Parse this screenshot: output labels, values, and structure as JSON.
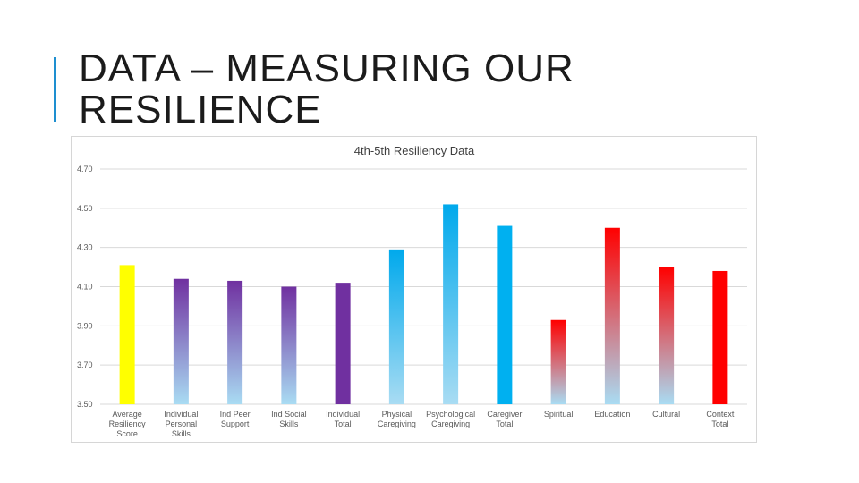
{
  "slide": {
    "title": "DATA – MEASURING OUR RESILIENCE",
    "accent_color": "#1e8fd0"
  },
  "chart_data": {
    "type": "bar",
    "title": "4th-5th Resiliency Data",
    "xlabel": "",
    "ylabel": "",
    "ylim": [
      3.5,
      4.7
    ],
    "yticks": [
      "4.70",
      "4.50",
      "4.30",
      "4.10",
      "3.90",
      "3.70",
      "3.50"
    ],
    "grid": true,
    "legend": "none",
    "categories": [
      "Average Resiliency Score",
      "Individual Personal Skills",
      "Ind Peer Support",
      "Ind Social Skills",
      "Individual Total",
      "Physical Caregiving",
      "Psychological Caregiving",
      "Caregiver Total",
      "Spiritual",
      "Education",
      "Cultural",
      "Context Total"
    ],
    "values": [
      4.21,
      4.14,
      4.13,
      4.1,
      4.12,
      4.29,
      4.52,
      4.41,
      3.93,
      4.4,
      4.2,
      4.18
    ],
    "bar_colors": [
      [
        "#ffff00",
        "#ffff00"
      ],
      [
        "#7030a0",
        "#a9dcf3"
      ],
      [
        "#7030a0",
        "#a9dcf3"
      ],
      [
        "#7030a0",
        "#a9dcf3"
      ],
      [
        "#7030a0",
        "#7030a0"
      ],
      [
        "#00a9ec",
        "#a9dcf3"
      ],
      [
        "#00a9ec",
        "#a9dcf3"
      ],
      [
        "#00b0f0",
        "#00b0f0"
      ],
      [
        "#ff0000",
        "#a9dcf3"
      ],
      [
        "#ff0000",
        "#a9dcf3"
      ],
      [
        "#ff0000",
        "#a9dcf3"
      ],
      [
        "#ff0000",
        "#ff0000"
      ]
    ]
  }
}
